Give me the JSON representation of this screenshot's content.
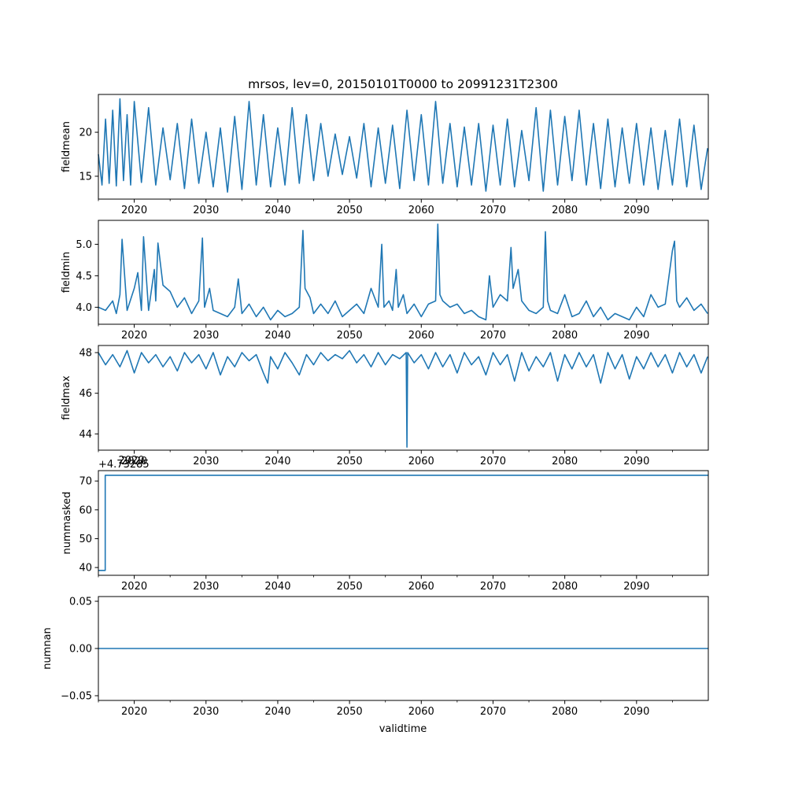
{
  "figure": {
    "title": "mrsos, lev=0, 20150101T0000 to 20991231T2300",
    "xlabel": "validtime",
    "line_color": "#1f77b4",
    "offset_text": "+4.73285",
    "offset_overlap_tick": "2020"
  },
  "chart_data": [
    {
      "type": "line",
      "name": "fieldmean",
      "ylabel": "fieldmean",
      "xlabel": "",
      "xlim": [
        2015.0,
        2100.0
      ],
      "ylim": [
        12.4,
        24.3
      ],
      "x_ticks": [
        "2020",
        "2030",
        "2040",
        "2050",
        "2060",
        "2070",
        "2080",
        "2090"
      ],
      "y_ticks": [
        "15",
        "20"
      ],
      "y_tick_values": [
        15,
        20
      ],
      "series": [
        {
          "x": [
            2015.0,
            2015.5,
            2016.0,
            2016.5,
            2017.0,
            2017.5,
            2018.0,
            2018.5,
            2019.0,
            2019.5,
            2020.0,
            2021.0,
            2022.0,
            2023.0,
            2024.0,
            2025.0,
            2026.0,
            2027.0,
            2028.0,
            2029.0,
            2030.0,
            2031.0,
            2032.0,
            2033.0,
            2034.0,
            2035.0,
            2036.0,
            2037.0,
            2038.0,
            2039.0,
            2040.0,
            2041.0,
            2042.0,
            2043.0,
            2044.0,
            2045.0,
            2046.0,
            2047.0,
            2048.0,
            2049.0,
            2050.0,
            2051.0,
            2052.0,
            2053.0,
            2054.0,
            2055.0,
            2056.0,
            2057.0,
            2058.0,
            2059.0,
            2060.0,
            2061.0,
            2062.0,
            2063.0,
            2064.0,
            2065.0,
            2066.0,
            2067.0,
            2068.0,
            2069.0,
            2070.0,
            2071.0,
            2072.0,
            2073.0,
            2074.0,
            2075.0,
            2076.0,
            2077.0,
            2078.0,
            2079.0,
            2080.0,
            2081.0,
            2082.0,
            2083.0,
            2084.0,
            2085.0,
            2086.0,
            2087.0,
            2088.0,
            2089.0,
            2090.0,
            2091.0,
            2092.0,
            2093.0,
            2094.0,
            2095.0,
            2096.0,
            2097.0,
            2098.0,
            2099.0,
            2099.9
          ],
          "y": [
            17.5,
            14.0,
            21.5,
            14.2,
            22.5,
            13.9,
            23.8,
            14.5,
            22.0,
            14.0,
            23.5,
            14.3,
            22.8,
            14.0,
            20.5,
            14.6,
            21.0,
            13.6,
            21.5,
            14.2,
            20.0,
            13.8,
            20.5,
            13.2,
            21.8,
            13.5,
            23.5,
            14.0,
            22.0,
            13.8,
            20.5,
            14.0,
            22.8,
            14.2,
            22.0,
            14.5,
            21.0,
            15.0,
            19.8,
            15.2,
            19.5,
            14.8,
            21.0,
            13.8,
            20.5,
            14.2,
            20.8,
            13.6,
            22.5,
            14.5,
            22.0,
            14.0,
            23.5,
            14.2,
            21.0,
            13.8,
            20.6,
            14.0,
            21.0,
            13.3,
            20.8,
            14.0,
            21.5,
            13.8,
            20.2,
            14.5,
            22.8,
            13.3,
            22.5,
            14.0,
            21.8,
            14.5,
            22.5,
            14.0,
            21.0,
            13.6,
            21.5,
            13.8,
            20.5,
            14.2,
            21.0,
            14.0,
            20.5,
            13.5,
            20.2,
            14.0,
            21.5,
            13.8,
            20.8,
            13.5,
            18.2
          ]
        }
      ]
    },
    {
      "type": "line",
      "name": "fieldmin",
      "ylabel": "fieldmin",
      "xlabel": "",
      "xlim": [
        2015.0,
        2100.0
      ],
      "ylim": [
        3.73,
        5.38
      ],
      "x_ticks": [
        "2020",
        "2030",
        "2040",
        "2050",
        "2060",
        "2070",
        "2080",
        "2090"
      ],
      "y_ticks": [
        "4.0",
        "4.5",
        "5.0"
      ],
      "y_tick_values": [
        4.0,
        4.5,
        5.0
      ],
      "series": [
        {
          "x": [
            2015.0,
            2016.0,
            2017.0,
            2017.5,
            2018.0,
            2018.3,
            2019.0,
            2020.0,
            2020.5,
            2021.0,
            2021.3,
            2022.0,
            2022.8,
            2023.0,
            2023.3,
            2024.0,
            2025.0,
            2026.0,
            2027.0,
            2028.0,
            2029.0,
            2029.5,
            2029.8,
            2030.5,
            2031.0,
            2032.0,
            2033.0,
            2034.0,
            2034.5,
            2035.0,
            2036.0,
            2037.0,
            2038.0,
            2039.0,
            2040.0,
            2041.0,
            2042.0,
            2043.0,
            2043.5,
            2043.8,
            2044.5,
            2045.0,
            2046.0,
            2047.0,
            2048.0,
            2049.0,
            2050.0,
            2051.0,
            2052.0,
            2053.0,
            2054.0,
            2054.5,
            2054.8,
            2055.5,
            2056.0,
            2056.5,
            2056.8,
            2057.5,
            2058.0,
            2059.0,
            2060.0,
            2061.0,
            2062.0,
            2062.3,
            2062.6,
            2063.0,
            2064.0,
            2065.0,
            2066.0,
            2067.0,
            2068.0,
            2069.0,
            2069.5,
            2070.0,
            2071.0,
            2072.0,
            2072.5,
            2072.8,
            2073.5,
            2074.0,
            2075.0,
            2076.0,
            2077.0,
            2077.3,
            2077.6,
            2078.0,
            2079.0,
            2080.0,
            2081.0,
            2082.0,
            2083.0,
            2084.0,
            2085.0,
            2086.0,
            2087.0,
            2088.0,
            2089.0,
            2090.0,
            2091.0,
            2092.0,
            2093.0,
            2094.0,
            2095.0,
            2095.3,
            2095.6,
            2096.0,
            2097.0,
            2098.0,
            2099.0,
            2099.9
          ],
          "y": [
            4.0,
            3.95,
            4.1,
            3.9,
            4.2,
            5.08,
            3.95,
            4.3,
            4.55,
            3.95,
            5.12,
            3.95,
            4.6,
            4.1,
            5.02,
            4.35,
            4.25,
            4.0,
            4.15,
            3.9,
            4.1,
            5.1,
            4.0,
            4.3,
            3.95,
            3.9,
            3.85,
            4.0,
            4.45,
            3.9,
            4.05,
            3.85,
            4.0,
            3.8,
            3.95,
            3.85,
            3.9,
            4.0,
            5.22,
            4.3,
            4.15,
            3.9,
            4.05,
            3.9,
            4.1,
            3.85,
            3.95,
            4.05,
            3.9,
            4.3,
            4.0,
            5.0,
            4.0,
            4.1,
            3.95,
            4.6,
            4.0,
            4.2,
            3.9,
            4.05,
            3.85,
            4.05,
            4.1,
            5.32,
            4.2,
            4.1,
            4.0,
            4.05,
            3.9,
            3.95,
            3.85,
            3.8,
            4.5,
            4.0,
            4.2,
            4.1,
            4.95,
            4.3,
            4.6,
            4.1,
            3.95,
            3.9,
            4.0,
            5.2,
            4.1,
            3.95,
            3.9,
            4.2,
            3.85,
            3.9,
            4.1,
            3.85,
            4.0,
            3.8,
            3.9,
            3.85,
            3.8,
            4.0,
            3.85,
            4.2,
            4.0,
            4.05,
            4.9,
            5.05,
            4.1,
            4.0,
            4.15,
            3.95,
            4.05,
            3.9
          ]
        }
      ]
    },
    {
      "type": "line",
      "name": "fieldmax",
      "ylabel": "fieldmax",
      "xlabel": "",
      "xlim": [
        2015.0,
        2100.0
      ],
      "ylim": [
        43.2,
        48.35
      ],
      "x_ticks": [
        "2020",
        "2030",
        "2040",
        "2050",
        "2060",
        "2070",
        "2080",
        "2090"
      ],
      "y_ticks": [
        "44",
        "46",
        "48"
      ],
      "y_tick_values": [
        44,
        46,
        48
      ],
      "series": [
        {
          "x": [
            2015.0,
            2016.0,
            2017.0,
            2018.0,
            2019.0,
            2020.0,
            2021.0,
            2022.0,
            2023.0,
            2024.0,
            2025.0,
            2026.0,
            2027.0,
            2028.0,
            2029.0,
            2030.0,
            2031.0,
            2032.0,
            2033.0,
            2034.0,
            2035.0,
            2036.0,
            2037.0,
            2038.0,
            2038.6,
            2039.0,
            2040.0,
            2041.0,
            2042.0,
            2043.0,
            2044.0,
            2045.0,
            2046.0,
            2047.0,
            2048.0,
            2049.0,
            2050.0,
            2051.0,
            2052.0,
            2053.0,
            2054.0,
            2055.0,
            2056.0,
            2057.0,
            2057.9,
            2058.0,
            2058.1,
            2059.0,
            2060.0,
            2061.0,
            2062.0,
            2063.0,
            2064.0,
            2065.0,
            2066.0,
            2067.0,
            2068.0,
            2069.0,
            2070.0,
            2071.0,
            2072.0,
            2073.0,
            2074.0,
            2075.0,
            2076.0,
            2077.0,
            2078.0,
            2079.0,
            2080.0,
            2081.0,
            2082.0,
            2083.0,
            2084.0,
            2085.0,
            2086.0,
            2087.0,
            2088.0,
            2089.0,
            2090.0,
            2091.0,
            2092.0,
            2093.0,
            2094.0,
            2095.0,
            2096.0,
            2097.0,
            2098.0,
            2099.0,
            2099.9
          ],
          "y": [
            48.0,
            47.4,
            47.9,
            47.3,
            48.1,
            47.0,
            48.0,
            47.5,
            47.9,
            47.3,
            47.8,
            47.1,
            48.0,
            47.5,
            47.9,
            47.2,
            48.0,
            46.9,
            47.8,
            47.3,
            48.0,
            47.6,
            47.9,
            47.0,
            46.5,
            47.8,
            47.2,
            48.0,
            47.5,
            46.9,
            47.9,
            47.4,
            48.0,
            47.6,
            47.9,
            47.7,
            48.1,
            47.5,
            47.9,
            47.3,
            48.0,
            47.4,
            47.9,
            47.7,
            48.0,
            43.35,
            48.0,
            47.5,
            47.9,
            47.2,
            48.0,
            47.3,
            47.9,
            47.0,
            48.0,
            47.4,
            47.8,
            46.9,
            48.0,
            47.4,
            47.9,
            46.6,
            48.0,
            47.1,
            47.8,
            47.3,
            48.0,
            46.6,
            47.9,
            47.2,
            48.0,
            47.3,
            47.9,
            46.5,
            48.0,
            47.2,
            47.9,
            46.7,
            47.8,
            47.2,
            48.0,
            47.3,
            47.9,
            47.0,
            48.0,
            47.3,
            47.9,
            47.0,
            47.8
          ]
        }
      ]
    },
    {
      "type": "line",
      "name": "nummasked",
      "ylabel": "nummasked",
      "xlabel": "",
      "xlim": [
        2015.0,
        2100.0
      ],
      "ylim": [
        37.3,
        73.6
      ],
      "x_ticks": [
        "2020",
        "2030",
        "2040",
        "2050",
        "2060",
        "2070",
        "2080",
        "2090"
      ],
      "y_ticks": [
        "40",
        "50",
        "60",
        "70"
      ],
      "y_tick_values": [
        40,
        50,
        60,
        70
      ],
      "series": [
        {
          "x": [
            2015.0,
            2015.95,
            2015.95,
            2100.0
          ],
          "y": [
            39,
            39,
            72,
            72
          ]
        }
      ]
    },
    {
      "type": "line",
      "name": "numnan",
      "ylabel": "numnan",
      "xlabel": "validtime",
      "xlim": [
        2015.0,
        2100.0
      ],
      "ylim": [
        -0.055,
        0.055
      ],
      "x_ticks": [
        "2020",
        "2030",
        "2040",
        "2050",
        "2060",
        "2070",
        "2080",
        "2090"
      ],
      "y_ticks": [
        "−0.05",
        "0.00",
        "0.05"
      ],
      "y_tick_values": [
        -0.05,
        0.0,
        0.05
      ],
      "series": [
        {
          "x": [
            2015.0,
            2100.0
          ],
          "y": [
            0.0,
            0.0
          ]
        }
      ]
    }
  ]
}
